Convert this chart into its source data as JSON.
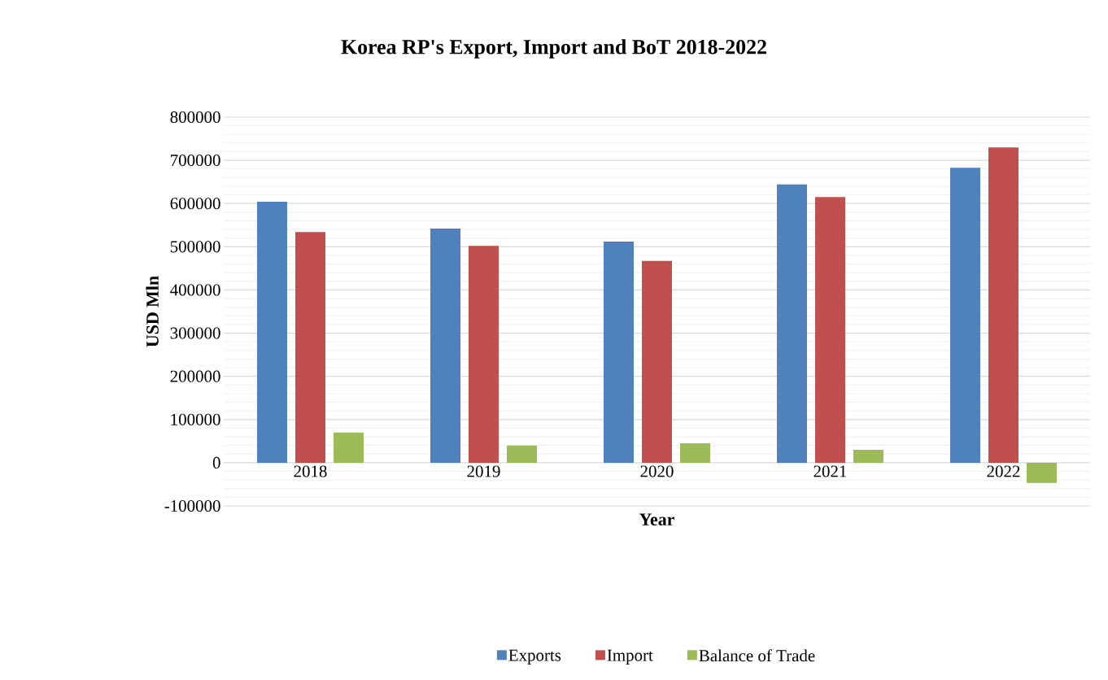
{
  "chart_data": {
    "type": "bar",
    "title": "Korea RP's Export, Import and BoT  2018-2022",
    "xlabel": "Year",
    "ylabel": "USD Mln",
    "categories": [
      "2018",
      "2019",
      "2020",
      "2021",
      "2022"
    ],
    "series": [
      {
        "name": "Exports",
        "color": "#4f81bd",
        "values": [
          604000,
          542000,
          512000,
          644000,
          683000
        ]
      },
      {
        "name": "Import",
        "color": "#c0504d",
        "values": [
          534000,
          502000,
          467000,
          615000,
          730000
        ]
      },
      {
        "name": "Balance of Trade",
        "color": "#9bbb59",
        "values": [
          70000,
          40000,
          45000,
          30000,
          -47000
        ]
      }
    ],
    "ylim": [
      -100000,
      800000
    ],
    "yticks": [
      -100000,
      0,
      100000,
      200000,
      300000,
      400000,
      500000,
      600000,
      700000,
      800000
    ],
    "grid": "y",
    "legend": "bottom"
  }
}
